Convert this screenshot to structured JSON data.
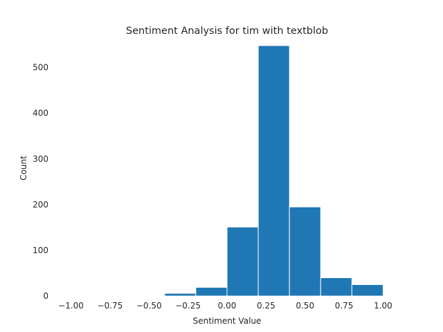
{
  "chart_data": {
    "type": "bar",
    "title": "Sentiment Analysis for tim with textblob",
    "xlabel": "Sentiment Value",
    "ylabel": "Count",
    "xlim": [
      -1.1,
      1.1
    ],
    "ylim": [
      0,
      560
    ],
    "bin_edges": [
      -1.0,
      -0.8,
      -0.6,
      -0.4,
      -0.2,
      0.0,
      0.2,
      0.4,
      0.6,
      0.8,
      1.0
    ],
    "values": [
      0,
      0,
      0,
      6,
      19,
      151,
      548,
      195,
      40,
      25
    ],
    "xticks": [
      -1.0,
      -0.75,
      -0.5,
      -0.25,
      0.0,
      0.25,
      0.5,
      0.75,
      1.0
    ],
    "xtick_labels": [
      "−1.00",
      "−0.75",
      "−0.50",
      "−0.25",
      "0.00",
      "0.25",
      "0.50",
      "0.75",
      "1.00"
    ],
    "yticks": [
      0,
      100,
      200,
      300,
      400,
      500
    ],
    "ytick_labels": [
      "0",
      "100",
      "200",
      "300",
      "400",
      "500"
    ],
    "bar_color": "#1f77b4",
    "edge_color": "#ffffff",
    "grid": false
  }
}
